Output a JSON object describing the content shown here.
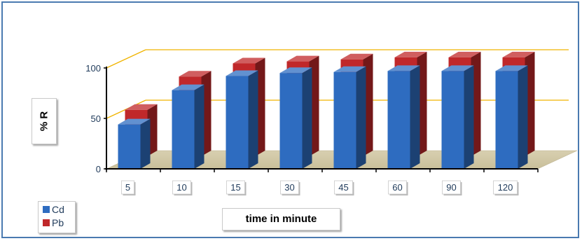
{
  "chart_data": {
    "type": "bar",
    "categories": [
      "5",
      "10",
      "15",
      "30",
      "45",
      "60",
      "90",
      "120"
    ],
    "series": [
      {
        "name": "Cd",
        "values": [
          44,
          78,
          92,
          95,
          96,
          97,
          97,
          97
        ],
        "color": "#2e6cc0"
      },
      {
        "name": "Pb",
        "values": [
          46,
          79,
          92,
          94,
          96,
          98,
          98,
          98
        ],
        "color": "#c0282a"
      }
    ],
    "yticks": [
      0,
      50,
      100
    ],
    "ylim": [
      0,
      100
    ],
    "xlabel": "time in minute",
    "ylabel": "% R",
    "legend": "bottom-left",
    "grid": true,
    "style": "3d-clustered-column",
    "gridline_color": "#f0b400"
  }
}
